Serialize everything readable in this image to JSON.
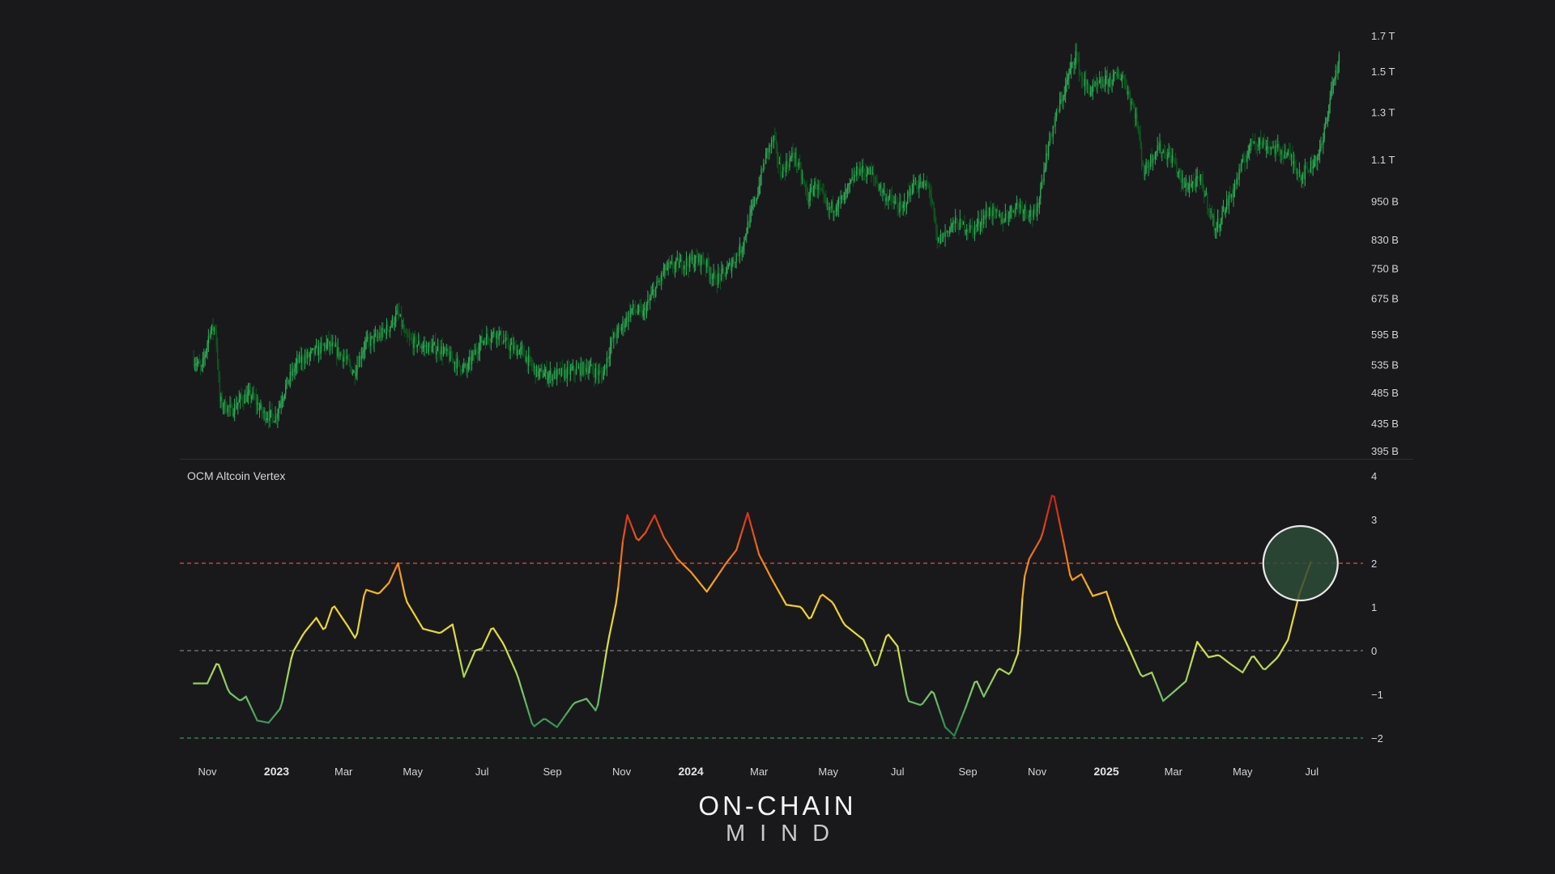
{
  "brand": {
    "line1": "ON-CHAIN",
    "line2": "MIND"
  },
  "colors": {
    "background": "#19191c",
    "candle_up": "#2fa857",
    "candle_down": "#0c5a1d",
    "upper_threshold": "#e0523d",
    "zero_line": "#7a7a80",
    "lower_threshold": "#2f9b4a",
    "highlight_fill": "#2d4e38",
    "highlight_ring": "#e8e8ea"
  },
  "chart_data": [
    {
      "type": "candlestick",
      "panel": "price",
      "scale": "log",
      "ylim": [
        395000000000,
        1700000000000
      ],
      "y_ticks": [
        {
          "label": "1.7 T",
          "value": 1700000000000
        },
        {
          "label": "1.5 T",
          "value": 1500000000000
        },
        {
          "label": "1.3 T",
          "value": 1300000000000
        },
        {
          "label": "1.1 T",
          "value": 1100000000000
        },
        {
          "label": "950 B",
          "value": 950000000000
        },
        {
          "label": "830 B",
          "value": 830000000000
        },
        {
          "label": "750 B",
          "value": 750000000000
        },
        {
          "label": "675 B",
          "value": 675000000000
        },
        {
          "label": "595 B",
          "value": 595000000000
        },
        {
          "label": "535 B",
          "value": 535000000000
        },
        {
          "label": "485 B",
          "value": 485000000000
        },
        {
          "label": "435 B",
          "value": 435000000000
        },
        {
          "label": "395 B",
          "value": 395000000000
        }
      ],
      "series": [
        {
          "points": [
            [
              "2022-10-20",
              545
            ],
            [
              "2022-10-27",
              525
            ],
            [
              "2022-11-03",
              600
            ],
            [
              "2022-11-08",
              610
            ],
            [
              "2022-11-12",
              470
            ],
            [
              "2022-11-22",
              455
            ],
            [
              "2022-12-01",
              475
            ],
            [
              "2022-12-10",
              480
            ],
            [
              "2022-12-20",
              450
            ],
            [
              "2022-12-31",
              445
            ],
            [
              "2023-01-10",
              500
            ],
            [
              "2023-01-20",
              540
            ],
            [
              "2023-02-01",
              555
            ],
            [
              "2023-02-15",
              575
            ],
            [
              "2023-03-01",
              550
            ],
            [
              "2023-03-10",
              520
            ],
            [
              "2023-03-20",
              575
            ],
            [
              "2023-04-01",
              590
            ],
            [
              "2023-04-10",
              610
            ],
            [
              "2023-04-18",
              640
            ],
            [
              "2023-04-25",
              585
            ],
            [
              "2023-05-10",
              570
            ],
            [
              "2023-05-25",
              565
            ],
            [
              "2023-06-10",
              535
            ],
            [
              "2023-06-17",
              525
            ],
            [
              "2023-06-30",
              580
            ],
            [
              "2023-07-13",
              600
            ],
            [
              "2023-07-25",
              570
            ],
            [
              "2023-08-05",
              560
            ],
            [
              "2023-08-18",
              520
            ],
            [
              "2023-09-01",
              515
            ],
            [
              "2023-09-15",
              520
            ],
            [
              "2023-10-01",
              530
            ],
            [
              "2023-10-15",
              515
            ],
            [
              "2023-10-24",
              585
            ],
            [
              "2023-11-01",
              610
            ],
            [
              "2023-11-10",
              650
            ],
            [
              "2023-11-20",
              640
            ],
            [
              "2023-12-01",
              700
            ],
            [
              "2023-12-10",
              750
            ],
            [
              "2023-12-20",
              760
            ],
            [
              "2024-01-01",
              770
            ],
            [
              "2024-01-12",
              775
            ],
            [
              "2024-01-22",
              720
            ],
            [
              "2024-02-01",
              740
            ],
            [
              "2024-02-15",
              810
            ],
            [
              "2024-02-28",
              970
            ],
            [
              "2024-03-08",
              1130
            ],
            [
              "2024-03-14",
              1180
            ],
            [
              "2024-03-20",
              1050
            ],
            [
              "2024-04-01",
              1120
            ],
            [
              "2024-04-13",
              960
            ],
            [
              "2024-04-20",
              1010
            ],
            [
              "2024-05-01",
              920
            ],
            [
              "2024-05-15",
              960
            ],
            [
              "2024-05-27",
              1060
            ],
            [
              "2024-06-07",
              1050
            ],
            [
              "2024-06-20",
              970
            ],
            [
              "2024-07-05",
              920
            ],
            [
              "2024-07-15",
              1010
            ],
            [
              "2024-07-29",
              1000
            ],
            [
              "2024-08-05",
              820
            ],
            [
              "2024-08-20",
              880
            ],
            [
              "2024-09-06",
              860
            ],
            [
              "2024-09-20",
              920
            ],
            [
              "2024-10-01",
              890
            ],
            [
              "2024-10-15",
              940
            ],
            [
              "2024-10-31",
              900
            ],
            [
              "2024-11-12",
              1180
            ],
            [
              "2024-11-25",
              1400
            ],
            [
              "2024-12-05",
              1600
            ],
            [
              "2024-12-10",
              1460
            ],
            [
              "2024-12-18",
              1400
            ],
            [
              "2025-01-01",
              1450
            ],
            [
              "2025-01-15",
              1480
            ],
            [
              "2025-01-27",
              1280
            ],
            [
              "2025-02-03",
              1050
            ],
            [
              "2025-02-15",
              1150
            ],
            [
              "2025-03-01",
              1100
            ],
            [
              "2025-03-10",
              1000
            ],
            [
              "2025-03-25",
              1020
            ],
            [
              "2025-04-07",
              860
            ],
            [
              "2025-04-22",
              980
            ],
            [
              "2025-05-10",
              1180
            ],
            [
              "2025-05-25",
              1150
            ],
            [
              "2025-06-10",
              1120
            ],
            [
              "2025-06-22",
              1040
            ],
            [
              "2025-07-01",
              1080
            ],
            [
              "2025-07-10",
              1150
            ],
            [
              "2025-07-18",
              1400
            ],
            [
              "2025-07-25",
              1560
            ]
          ]
        }
      ]
    },
    {
      "type": "line",
      "panel": "indicator",
      "title": "OCM Altcoin Vertex",
      "ylim": [
        -2,
        4
      ],
      "y_ticks": [
        "4",
        "3",
        "2",
        "1",
        "0",
        "−1",
        "−2"
      ],
      "reference_lines": [
        {
          "value": 2,
          "style": "dashed",
          "color": "#e0523d"
        },
        {
          "value": 0,
          "style": "dashed",
          "color": "#7a7a80"
        },
        {
          "value": -2,
          "style": "dashed",
          "color": "#2f9b4a"
        }
      ],
      "series": [
        {
          "points": [
            [
              "2022-10-20",
              -0.75
            ],
            [
              "2022-11-01",
              -0.75
            ],
            [
              "2022-11-10",
              -0.25
            ],
            [
              "2022-11-20",
              -0.95
            ],
            [
              "2022-11-30",
              -1.15
            ],
            [
              "2022-12-05",
              -1.05
            ],
            [
              "2022-12-15",
              -1.6
            ],
            [
              "2022-12-25",
              -1.65
            ],
            [
              "2023-01-05",
              -1.3
            ],
            [
              "2023-01-15",
              -0.05
            ],
            [
              "2023-01-25",
              0.4
            ],
            [
              "2023-02-05",
              0.75
            ],
            [
              "2023-02-12",
              0.45
            ],
            [
              "2023-02-20",
              1.05
            ],
            [
              "2023-03-05",
              0.55
            ],
            [
              "2023-03-12",
              0.25
            ],
            [
              "2023-03-20",
              1.4
            ],
            [
              "2023-04-01",
              1.3
            ],
            [
              "2023-04-10",
              1.55
            ],
            [
              "2023-04-18",
              2.0
            ],
            [
              "2023-04-25",
              1.15
            ],
            [
              "2023-05-10",
              0.5
            ],
            [
              "2023-05-25",
              0.4
            ],
            [
              "2023-06-05",
              0.6
            ],
            [
              "2023-06-15",
              -0.6
            ],
            [
              "2023-06-25",
              0.0
            ],
            [
              "2023-07-01",
              0.05
            ],
            [
              "2023-07-10",
              0.55
            ],
            [
              "2023-07-20",
              0.15
            ],
            [
              "2023-08-01",
              -0.55
            ],
            [
              "2023-08-15",
              -1.75
            ],
            [
              "2023-08-25",
              -1.55
            ],
            [
              "2023-09-05",
              -1.75
            ],
            [
              "2023-09-20",
              -1.2
            ],
            [
              "2023-10-01",
              -1.1
            ],
            [
              "2023-10-10",
              -1.4
            ],
            [
              "2023-10-20",
              0.2
            ],
            [
              "2023-10-28",
              1.2
            ],
            [
              "2023-11-02",
              2.5
            ],
            [
              "2023-11-06",
              3.1
            ],
            [
              "2023-11-15",
              2.5
            ],
            [
              "2023-11-22",
              2.7
            ],
            [
              "2023-11-30",
              3.1
            ],
            [
              "2023-12-08",
              2.6
            ],
            [
              "2023-12-20",
              2.1
            ],
            [
              "2024-01-01",
              1.8
            ],
            [
              "2024-01-15",
              1.35
            ],
            [
              "2024-02-01",
              2.0
            ],
            [
              "2024-02-10",
              2.3
            ],
            [
              "2024-02-20",
              3.15
            ],
            [
              "2024-03-01",
              2.2
            ],
            [
              "2024-03-12",
              1.65
            ],
            [
              "2024-03-25",
              1.05
            ],
            [
              "2024-04-07",
              1.0
            ],
            [
              "2024-04-15",
              0.7
            ],
            [
              "2024-04-25",
              1.3
            ],
            [
              "2024-05-05",
              1.1
            ],
            [
              "2024-05-15",
              0.6
            ],
            [
              "2024-06-01",
              0.25
            ],
            [
              "2024-06-12",
              -0.4
            ],
            [
              "2024-06-22",
              0.4
            ],
            [
              "2024-07-01",
              0.1
            ],
            [
              "2024-07-10",
              -1.15
            ],
            [
              "2024-07-22",
              -1.25
            ],
            [
              "2024-08-01",
              -0.9
            ],
            [
              "2024-08-12",
              -1.75
            ],
            [
              "2024-08-20",
              -1.95
            ],
            [
              "2024-08-30",
              -1.3
            ],
            [
              "2024-09-08",
              -0.65
            ],
            [
              "2024-09-15",
              -1.05
            ],
            [
              "2024-09-28",
              -0.4
            ],
            [
              "2024-10-08",
              -0.55
            ],
            [
              "2024-10-16",
              0.0
            ],
            [
              "2024-10-20",
              1.6
            ],
            [
              "2024-10-25",
              2.1
            ],
            [
              "2024-11-05",
              2.6
            ],
            [
              "2024-11-15",
              3.65
            ],
            [
              "2024-11-25",
              2.4
            ],
            [
              "2024-12-01",
              1.6
            ],
            [
              "2024-12-10",
              1.75
            ],
            [
              "2024-12-20",
              1.25
            ],
            [
              "2025-01-01",
              1.35
            ],
            [
              "2025-01-10",
              0.65
            ],
            [
              "2025-01-20",
              0.1
            ],
            [
              "2025-02-01",
              -0.6
            ],
            [
              "2025-02-10",
              -0.5
            ],
            [
              "2025-02-20",
              -1.15
            ],
            [
              "2025-03-01",
              -0.95
            ],
            [
              "2025-03-12",
              -0.7
            ],
            [
              "2025-03-22",
              0.2
            ],
            [
              "2025-04-01",
              -0.15
            ],
            [
              "2025-04-10",
              -0.1
            ],
            [
              "2025-04-20",
              -0.3
            ],
            [
              "2025-05-01",
              -0.5
            ],
            [
              "2025-05-10",
              -0.1
            ],
            [
              "2025-05-20",
              -0.45
            ],
            [
              "2025-06-01",
              -0.15
            ],
            [
              "2025-06-10",
              0.25
            ],
            [
              "2025-06-20",
              1.3
            ],
            [
              "2025-07-01",
              2.1
            ]
          ]
        }
      ],
      "highlight": {
        "date": "2025-06-21",
        "value": 2.0
      }
    }
  ],
  "x_axis": {
    "ticks": [
      {
        "label": "Nov",
        "date": "2022-11-01",
        "bold": false
      },
      {
        "label": "2023",
        "date": "2023-01-01",
        "bold": true
      },
      {
        "label": "Mar",
        "date": "2023-03-01",
        "bold": false
      },
      {
        "label": "May",
        "date": "2023-05-01",
        "bold": false
      },
      {
        "label": "Jul",
        "date": "2023-07-01",
        "bold": false
      },
      {
        "label": "Sep",
        "date": "2023-09-01",
        "bold": false
      },
      {
        "label": "Nov",
        "date": "2023-11-01",
        "bold": false
      },
      {
        "label": "2024",
        "date": "2024-01-01",
        "bold": true
      },
      {
        "label": "Mar",
        "date": "2024-03-01",
        "bold": false
      },
      {
        "label": "May",
        "date": "2024-05-01",
        "bold": false
      },
      {
        "label": "Jul",
        "date": "2024-07-01",
        "bold": false
      },
      {
        "label": "Sep",
        "date": "2024-09-01",
        "bold": false
      },
      {
        "label": "Nov",
        "date": "2024-11-01",
        "bold": false
      },
      {
        "label": "2025",
        "date": "2025-01-01",
        "bold": true
      },
      {
        "label": "Mar",
        "date": "2025-03-01",
        "bold": false
      },
      {
        "label": "May",
        "date": "2025-05-01",
        "bold": false
      },
      {
        "label": "Jul",
        "date": "2025-07-01",
        "bold": false
      }
    ]
  }
}
